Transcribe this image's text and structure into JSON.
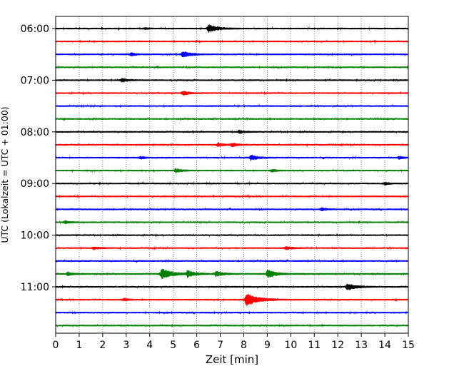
{
  "chart_data": {
    "type": "line",
    "title": "",
    "xlabel": "Zeit  [min]",
    "ylabel": "UTC (Lokalzeit = UTC + 01:00)",
    "xlim": [
      0,
      15
    ],
    "x_ticks": [
      "0",
      "1",
      "2",
      "3",
      "4",
      "5",
      "6",
      "7",
      "8",
      "9",
      "10",
      "11",
      "12",
      "13",
      "14",
      "15"
    ],
    "y_tick_labels": [
      "06:00",
      "07:00",
      "08:00",
      "09:00",
      "10:00",
      "11:00"
    ],
    "y_tick_rows": [
      0,
      4,
      8,
      12,
      16,
      20
    ],
    "grid": "vertical dotted at each minute",
    "color_cycle": [
      "#000000",
      "#ff0000",
      "#0000ff",
      "#008000"
    ],
    "rows": [
      {
        "start": "06:00",
        "color": "#000000",
        "events": [
          {
            "t": 3.8,
            "amp": 0.2
          },
          {
            "t": 6.5,
            "amp": 0.9
          }
        ]
      },
      {
        "start": "06:15",
        "color": "#ff0000",
        "events": []
      },
      {
        "start": "06:30",
        "color": "#0000ff",
        "events": [
          {
            "t": 3.2,
            "amp": 0.35
          },
          {
            "t": 5.4,
            "amp": 0.75
          }
        ]
      },
      {
        "start": "06:45",
        "color": "#008000",
        "events": []
      },
      {
        "start": "07:00",
        "color": "#000000",
        "events": [
          {
            "t": 2.8,
            "amp": 0.4
          }
        ]
      },
      {
        "start": "07:15",
        "color": "#ff0000",
        "events": [
          {
            "t": 5.4,
            "amp": 0.5
          }
        ]
      },
      {
        "start": "07:30",
        "color": "#0000ff",
        "events": []
      },
      {
        "start": "07:45",
        "color": "#008000",
        "events": []
      },
      {
        "start": "08:00",
        "color": "#000000",
        "events": [
          {
            "t": 7.8,
            "amp": 0.35
          }
        ]
      },
      {
        "start": "08:15",
        "color": "#ff0000",
        "events": [
          {
            "t": 6.9,
            "amp": 0.45
          },
          {
            "t": 7.5,
            "amp": 0.4
          }
        ]
      },
      {
        "start": "08:30",
        "color": "#0000ff",
        "events": [
          {
            "t": 3.6,
            "amp": 0.3
          },
          {
            "t": 8.3,
            "amp": 0.6
          },
          {
            "t": 14.6,
            "amp": 0.3
          }
        ]
      },
      {
        "start": "08:45",
        "color": "#008000",
        "events": [
          {
            "t": 5.1,
            "amp": 0.45
          },
          {
            "t": 9.2,
            "amp": 0.3
          }
        ]
      },
      {
        "start": "09:00",
        "color": "#000000",
        "events": [
          {
            "t": 14.0,
            "amp": 0.3
          }
        ]
      },
      {
        "start": "09:15",
        "color": "#ff0000",
        "events": []
      },
      {
        "start": "09:30",
        "color": "#0000ff",
        "events": [
          {
            "t": 11.3,
            "amp": 0.35
          }
        ]
      },
      {
        "start": "09:45",
        "color": "#008000",
        "events": [
          {
            "t": 0.4,
            "amp": 0.3
          }
        ]
      },
      {
        "start": "10:00",
        "color": "#000000",
        "events": []
      },
      {
        "start": "10:15",
        "color": "#ff0000",
        "events": [
          {
            "t": 1.6,
            "amp": 0.3
          },
          {
            "t": 9.8,
            "amp": 0.35
          }
        ]
      },
      {
        "start": "10:30",
        "color": "#0000ff",
        "events": []
      },
      {
        "start": "10:45",
        "color": "#008000",
        "events": [
          {
            "t": 0.5,
            "amp": 0.4
          },
          {
            "t": 4.5,
            "amp": 1.2
          },
          {
            "t": 5.6,
            "amp": 0.7
          },
          {
            "t": 6.8,
            "amp": 0.6
          },
          {
            "t": 9.0,
            "amp": 0.9
          }
        ]
      },
      {
        "start": "11:00",
        "color": "#000000",
        "events": [
          {
            "t": 12.4,
            "amp": 0.8
          }
        ]
      },
      {
        "start": "11:15",
        "color": "#ff0000",
        "events": [
          {
            "t": 2.9,
            "amp": 0.3
          },
          {
            "t": 8.1,
            "amp": 1.4
          }
        ]
      },
      {
        "start": "11:30",
        "color": "#0000ff",
        "events": []
      },
      {
        "start": "11:45",
        "color": "#008000",
        "events": []
      }
    ]
  }
}
